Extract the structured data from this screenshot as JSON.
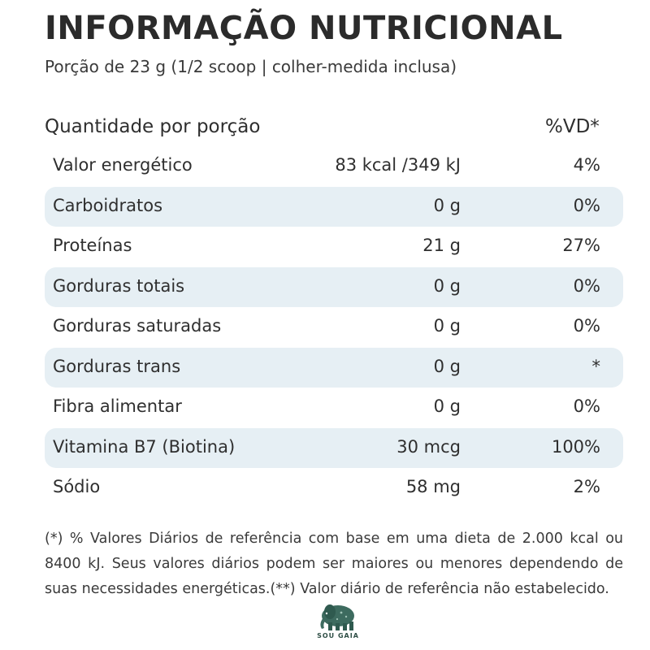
{
  "title": "INFORMAÇÃO NUTRICIONAL",
  "subtitle": "Porção de 23 g (1/2 scoop | colher-medida inclusa)",
  "table": {
    "header_left": "Quantidade por porção",
    "header_right": "%VD*",
    "rows": [
      {
        "label": "Valor energético",
        "amount": "83 kcal /349 kJ",
        "vd": "4%"
      },
      {
        "label": "Carboidratos",
        "amount": "0 g",
        "vd": "0%"
      },
      {
        "label": "Proteínas",
        "amount": "21 g",
        "vd": "27%"
      },
      {
        "label": "Gorduras totais",
        "amount": "0 g",
        "vd": "0%"
      },
      {
        "label": "Gorduras saturadas",
        "amount": "0 g",
        "vd": "0%"
      },
      {
        "label": "Gorduras trans",
        "amount": "0 g",
        "vd": "*"
      },
      {
        "label": "Fibra alimentar",
        "amount": "0 g",
        "vd": "0%"
      },
      {
        "label": "Vitamina B7 (Biotina)",
        "amount": "30 mcg",
        "vd": "100%"
      },
      {
        "label": "Sódio",
        "amount": "58 mg",
        "vd": "2%"
      }
    ]
  },
  "footnote": "(*) % Valores Diários de referência com base em uma dieta de 2.000 kcal ou 8400 kJ. Seus valores diários podem ser maiores ou menores dependendo de suas necessidades energéticas.(**) Valor diário de referência não estabelecido.",
  "logo": {
    "text": "SOU GAIA",
    "icon": "elephant-logo-icon"
  },
  "colors": {
    "shaded_row": "#e6eff4",
    "text": "#2f2f2f",
    "logo": "#2f4f46"
  }
}
